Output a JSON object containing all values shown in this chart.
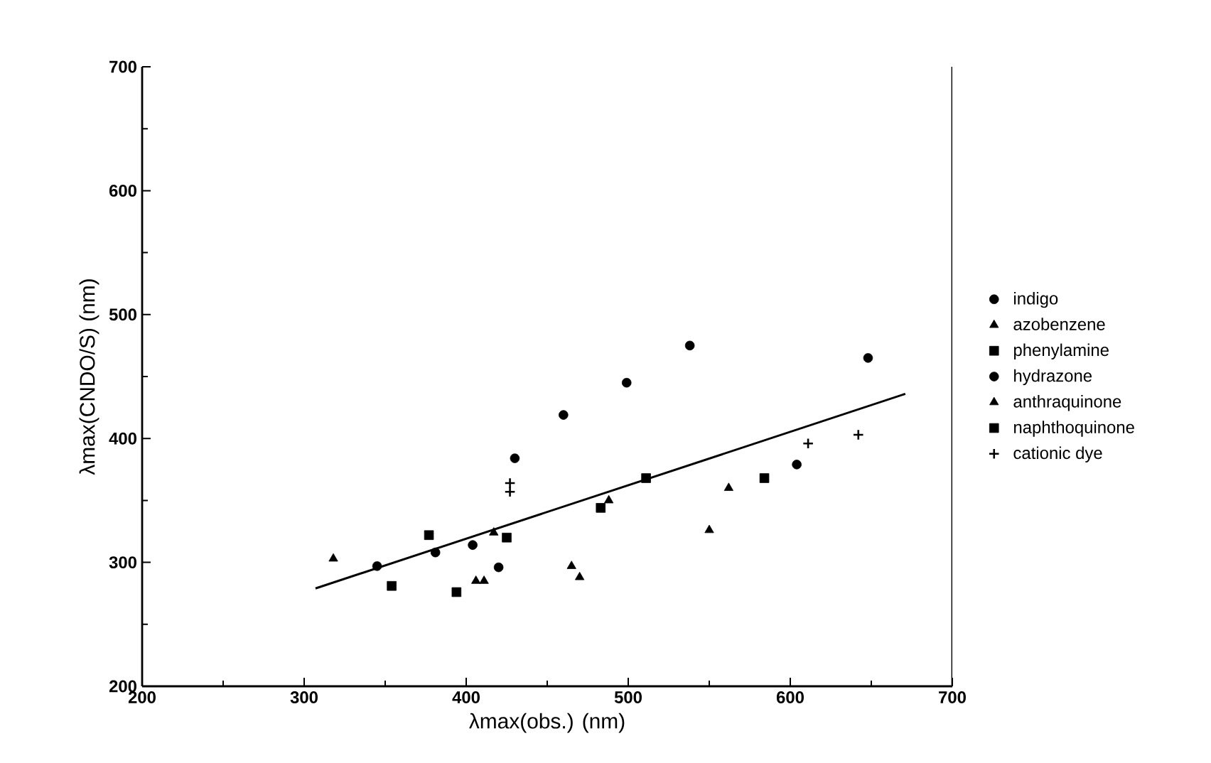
{
  "chart_data": {
    "type": "scatter",
    "xlabel": "λmax(obs.) (nm)",
    "ylabel": "λmax(CNDO/S)  (nm)",
    "xlim": [
      200,
      700
    ],
    "ylim": [
      200,
      700
    ],
    "xticks": [
      200,
      300,
      400,
      500,
      600,
      700
    ],
    "yticks": [
      200,
      300,
      400,
      500,
      600,
      700
    ],
    "legend": "right",
    "grid": false,
    "series": [
      {
        "name": "indigo",
        "color": "#000000",
        "marker": "circle",
        "x": [
          420,
          604,
          648
        ],
        "values": [
          296,
          379,
          465
        ]
      },
      {
        "name": "azobenzene",
        "color": "#000000",
        "marker": "triangle",
        "x": [
          318,
          406,
          411,
          417,
          488
        ],
        "values": [
          303,
          285,
          285,
          324,
          350
        ]
      },
      {
        "name": "phenylamine",
        "color": "#000000",
        "marker": "square",
        "x": [
          354,
          394,
          425
        ],
        "values": [
          281,
          276,
          320
        ]
      },
      {
        "name": "hydrazone",
        "color": "#000000",
        "marker": "circle",
        "x": [
          345,
          381,
          404,
          430,
          460,
          499,
          538
        ],
        "values": [
          297,
          308,
          314,
          384,
          419,
          445,
          475
        ]
      },
      {
        "name": "anthraquinone",
        "color": "#000000",
        "marker": "triangle",
        "x": [
          465,
          470,
          550,
          562
        ],
        "values": [
          297,
          288,
          326,
          360
        ]
      },
      {
        "name": "naphthoquinone",
        "color": "#000000",
        "marker": "square",
        "x": [
          377,
          483,
          511,
          584
        ],
        "values": [
          322,
          344,
          368,
          368
        ]
      },
      {
        "name": "cationic dye",
        "color": "#000000",
        "marker": "cross",
        "x": [
          427,
          427,
          611,
          642
        ],
        "values": [
          364,
          357,
          396,
          403
        ]
      },
      {
        "type": "line",
        "color": "#000000",
        "marker": "none",
        "x": [
          307,
          671
        ],
        "values": [
          279,
          436
        ]
      }
    ]
  }
}
